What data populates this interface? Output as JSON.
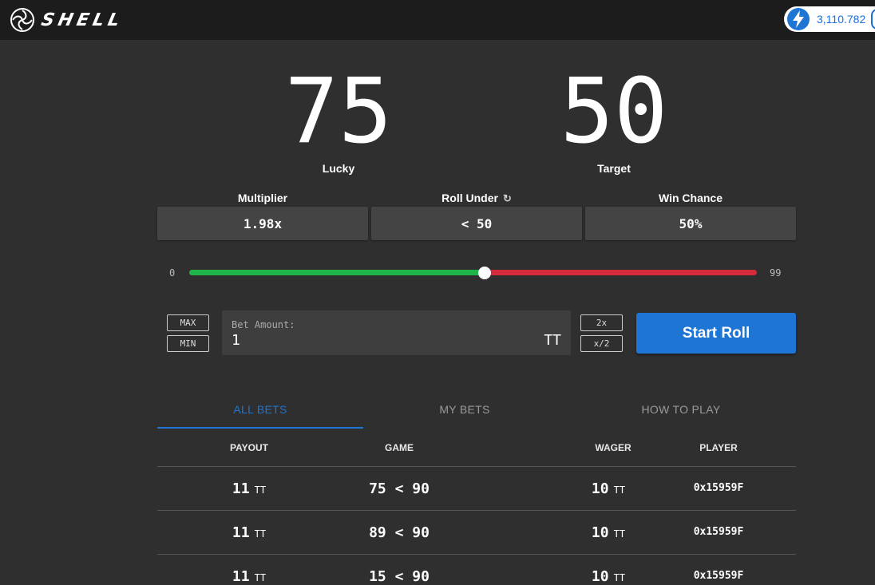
{
  "header": {
    "logo_text": "SHELL",
    "balance": "3,110.782",
    "balance_icon": "lightning-bolt-icon",
    "brand_color": "#1e75d3"
  },
  "dice": {
    "lucky_value": "75",
    "lucky_label": "Lucky",
    "target_value": "50",
    "target_label": "Target"
  },
  "stats": {
    "multiplier_label": "Multiplier",
    "multiplier_value": "1.98x",
    "roll_under_label": "Roll Under",
    "roll_under_value": "< 50",
    "win_chance_label": "Win Chance",
    "win_chance_value": "50%"
  },
  "slider": {
    "min_label": "0",
    "max_label": "99",
    "value": 50,
    "green_color": "#1fb34a",
    "red_color": "#d42a3c"
  },
  "bet": {
    "max_label": "MAX",
    "min_label": "MIN",
    "amount_label": "Bet Amount:",
    "amount_value": "1",
    "unit": "TT",
    "double_label": "2x",
    "half_label": "x/2",
    "start_label": "Start Roll"
  },
  "tabs": [
    "ALL BETS",
    "MY BETS",
    "HOW TO PLAY"
  ],
  "table": {
    "headers": [
      "PAYOUT",
      "GAME",
      "WAGER",
      "PLAYER"
    ],
    "rows": [
      {
        "payout": "11",
        "payout_unit": "TT",
        "game": "75 < 90",
        "wager": "10",
        "wager_unit": "TT",
        "player": "0x15959F"
      },
      {
        "payout": "11",
        "payout_unit": "TT",
        "game": "89 < 90",
        "wager": "10",
        "wager_unit": "TT",
        "player": "0x15959F"
      },
      {
        "payout": "11",
        "payout_unit": "TT",
        "game": "15 < 90",
        "wager": "10",
        "wager_unit": "TT",
        "player": "0x15959F"
      }
    ]
  }
}
